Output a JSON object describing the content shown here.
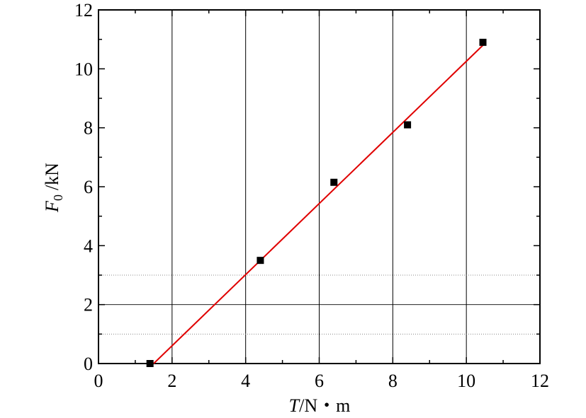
{
  "chart_data": {
    "type": "scatter",
    "xlabel": {
      "symbol": "T",
      "unit": "/N・m"
    },
    "ylabel": {
      "symbol": "F",
      "subscript": "0",
      "unit": "/kN"
    },
    "xlim": [
      0,
      12
    ],
    "ylim": [
      0,
      12
    ],
    "xticks": [
      "0",
      "2",
      "4",
      "6",
      "8",
      "10",
      "12"
    ],
    "yticks": [
      "0",
      "2",
      "4",
      "6",
      "8",
      "10",
      "12"
    ],
    "points": [
      {
        "x": 1.4,
        "y": 0.0
      },
      {
        "x": 4.4,
        "y": 3.5
      },
      {
        "x": 6.4,
        "y": 6.15
      },
      {
        "x": 8.4,
        "y": 8.1
      },
      {
        "x": 10.45,
        "y": 10.9
      }
    ],
    "fit_line": {
      "x0": 1.5,
      "y0": 0.0,
      "x1": 10.45,
      "y1": 10.8,
      "color": "#e00000"
    },
    "grid": {
      "vertical_x": [
        2,
        4,
        6,
        8,
        10
      ],
      "horizontal_solid_y": [
        2
      ],
      "horizontal_dotted_y": [
        1,
        3
      ]
    },
    "marker_color": "#000000"
  }
}
